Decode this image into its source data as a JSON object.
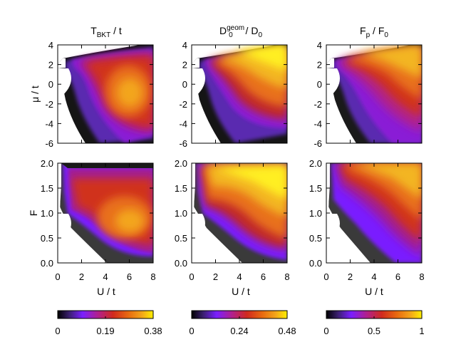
{
  "chart_data": [
    {
      "type": "heatmap",
      "title": "T_BKT / t",
      "title_parts": {
        "base": "T",
        "sub": "BKT",
        "rest": " / t"
      },
      "xlabel": "",
      "ylabel": "μ / t",
      "xlim": [
        0,
        8
      ],
      "ylim": [
        -6,
        4
      ],
      "xticks": [],
      "yticks": [
        "4",
        "2",
        "0",
        "-2",
        "-4",
        "-6"
      ],
      "colormap": "gnuplot-like: black → purple → red → orange → yellow"
    },
    {
      "type": "heatmap",
      "title": "D0^geom / D0",
      "title_parts": {
        "base": "D",
        "sub": "0",
        "sup": "geom",
        "rest": " / D",
        "sub2": "0"
      },
      "xlabel": "",
      "ylabel": "",
      "xlim": [
        0,
        8
      ],
      "ylim": [
        -6,
        4
      ],
      "xticks": [],
      "yticks": [
        "4",
        "2",
        "0",
        "-2",
        "-4",
        "-6"
      ]
    },
    {
      "type": "heatmap",
      "title": "F_p / F_0",
      "title_parts": {
        "base": "F",
        "sub": "p",
        "rest": " / F",
        "sub2": "0"
      },
      "xlabel": "",
      "ylabel": "",
      "xlim": [
        0,
        8
      ],
      "ylim": [
        -6,
        4
      ],
      "xticks": [],
      "yticks": [
        "4",
        "2",
        "0",
        "-2",
        "-4",
        "-6"
      ]
    },
    {
      "type": "heatmap",
      "title": "",
      "xlabel": "U / t",
      "ylabel": "F",
      "xlim": [
        0,
        8
      ],
      "ylim": [
        0,
        2
      ],
      "xticks": [
        "0",
        "2",
        "4",
        "6",
        "8"
      ],
      "yticks": [
        "2.0",
        "1.5",
        "1.0",
        "0.5",
        "0.0"
      ]
    },
    {
      "type": "heatmap",
      "title": "",
      "xlabel": "U / t",
      "ylabel": "",
      "xlim": [
        0,
        8
      ],
      "ylim": [
        0,
        2
      ],
      "xticks": [
        "0",
        "2",
        "4",
        "6",
        "8"
      ],
      "yticks": [
        "2.0",
        "1.5",
        "1.0",
        "0.5",
        "0.0"
      ]
    },
    {
      "type": "heatmap",
      "title": "",
      "xlabel": "U / t",
      "ylabel": "",
      "xlim": [
        0,
        8
      ],
      "ylim": [
        0,
        2
      ],
      "xticks": [
        "0",
        "2",
        "4",
        "6",
        "8"
      ],
      "yticks": [
        "2.0",
        "1.5",
        "1.0",
        "0.5",
        "0.0"
      ]
    }
  ],
  "colorbars": [
    {
      "min": 0,
      "max": 0.38,
      "ticks": [
        "0",
        "0.19",
        "0.38"
      ]
    },
    {
      "min": 0,
      "max": 0.48,
      "ticks": [
        "0",
        "0.24",
        "0.48"
      ]
    },
    {
      "min": 0,
      "max": 1,
      "ticks": [
        "0",
        "0.5",
        "1"
      ]
    }
  ],
  "colormap_stops": [
    "#000000",
    "#3a1f6e",
    "#7a1fff",
    "#b0208e",
    "#d02a1e",
    "#e86a10",
    "#f3a51a",
    "#ffef00"
  ]
}
